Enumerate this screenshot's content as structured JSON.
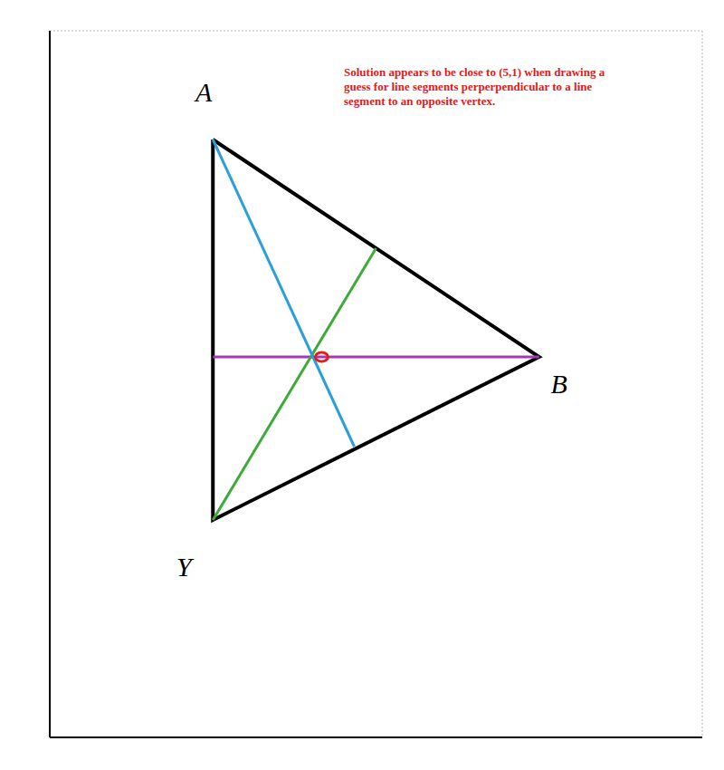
{
  "chart_data": {
    "type": "line",
    "xlim": [
      0,
      12
    ],
    "ylim": [
      -6,
      7
    ],
    "xticks": [
      0,
      1,
      2,
      3,
      4,
      5,
      6,
      7,
      8,
      9,
      10,
      11,
      12
    ],
    "yticks": [
      -6,
      -5,
      -4,
      -3,
      -2,
      -1,
      0,
      1,
      2,
      3,
      4,
      5,
      6,
      7
    ],
    "grid": true,
    "tick_labels": false,
    "points": [
      {
        "label": "A",
        "x": 3,
        "y": 5
      },
      {
        "label": "B",
        "x": 9,
        "y": 1
      },
      {
        "label": "Y",
        "x": 3,
        "y": -2
      }
    ],
    "series": [
      {
        "color": "#000000",
        "values": [
          {
            "x": 3,
            "y": 5
          },
          {
            "x": 9,
            "y": 1
          },
          {
            "x": 3,
            "y": -2
          },
          {
            "x": 3,
            "y": 5
          }
        ]
      },
      {
        "color": "#a23bb5",
        "values": [
          {
            "x": 3,
            "y": 1
          },
          {
            "x": 9,
            "y": 1
          }
        ]
      },
      {
        "color": "#3daa3a",
        "values": [
          {
            "x": 3,
            "y": -2
          },
          {
            "x": 6,
            "y": 3
          }
        ]
      },
      {
        "color": "#2a9fd8",
        "values": [
          {
            "x": 3,
            "y": 5
          },
          {
            "x": 5.6,
            "y": -0.65
          }
        ]
      }
    ],
    "solution": {
      "x": 5,
      "y": 1,
      "color": "#e0201b"
    },
    "annotation": {
      "text": "Solution appears to be close to  (5,1) when drawing a guess for line segments perperpendicular to a line segment to an opposite vertex.",
      "color": "#e0201b"
    }
  }
}
